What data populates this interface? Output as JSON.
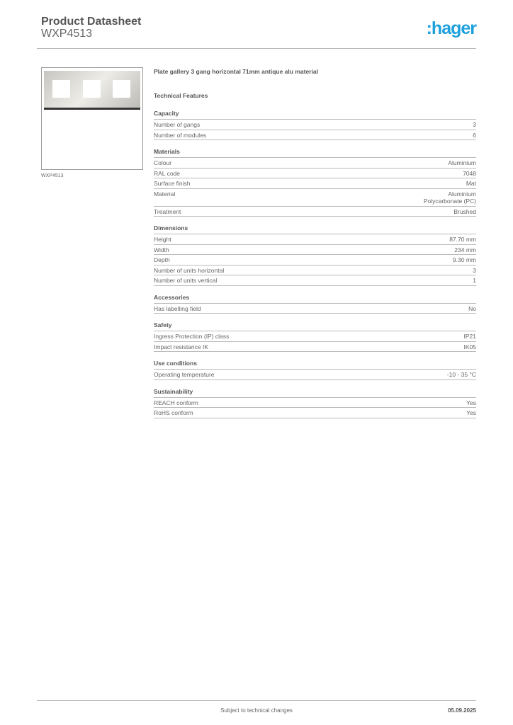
{
  "header": {
    "title": "Product Datasheet",
    "subtitle": "WXP4513",
    "logo": ":hager",
    "brand_color": "#1ea1dc"
  },
  "image": {
    "caption": "WXP4513"
  },
  "main": {
    "description": "Plate gallery 3 gang horizontal 71mm antique alu material",
    "technical_features": "Technical Features",
    "sections": [
      {
        "title": "Capacity",
        "rows": [
          [
            "Number of gangs",
            "3"
          ],
          [
            "Number of modules",
            "6"
          ]
        ]
      },
      {
        "title": "Materials",
        "rows": [
          [
            "Colour",
            "Aluminium"
          ],
          [
            "RAL code",
            "7048"
          ],
          [
            "Surface finish",
            "Mat"
          ],
          [
            "Material",
            "Aluminium\nPolycarbonate (PC)"
          ],
          [
            "Treatment",
            "Brushed"
          ]
        ]
      },
      {
        "title": "Dimensions",
        "rows": [
          [
            "Height",
            "87.70 mm"
          ],
          [
            "Width",
            "234 mm"
          ],
          [
            "Depth",
            "9.30 mm"
          ],
          [
            "Number of units horizontal",
            "3"
          ],
          [
            "Number of units vertical",
            "1"
          ]
        ]
      },
      {
        "title": "Accessories",
        "rows": [
          [
            "Has labelling field",
            "No"
          ]
        ]
      },
      {
        "title": "Safety",
        "rows": [
          [
            "Ingress Protection (IP) class",
            "IP21"
          ],
          [
            "Impact resistance IK",
            "IK05"
          ]
        ]
      },
      {
        "title": "Use conditions",
        "rows": [
          [
            "Operating temperature",
            "-10 - 35 °C"
          ]
        ]
      },
      {
        "title": "Sustainability",
        "rows": [
          [
            "REACH conform",
            "Yes"
          ],
          [
            "RoHS conform",
            "Yes"
          ]
        ]
      }
    ]
  },
  "footer": {
    "note": "Subject to technical changes",
    "date": "05.09.2025"
  }
}
